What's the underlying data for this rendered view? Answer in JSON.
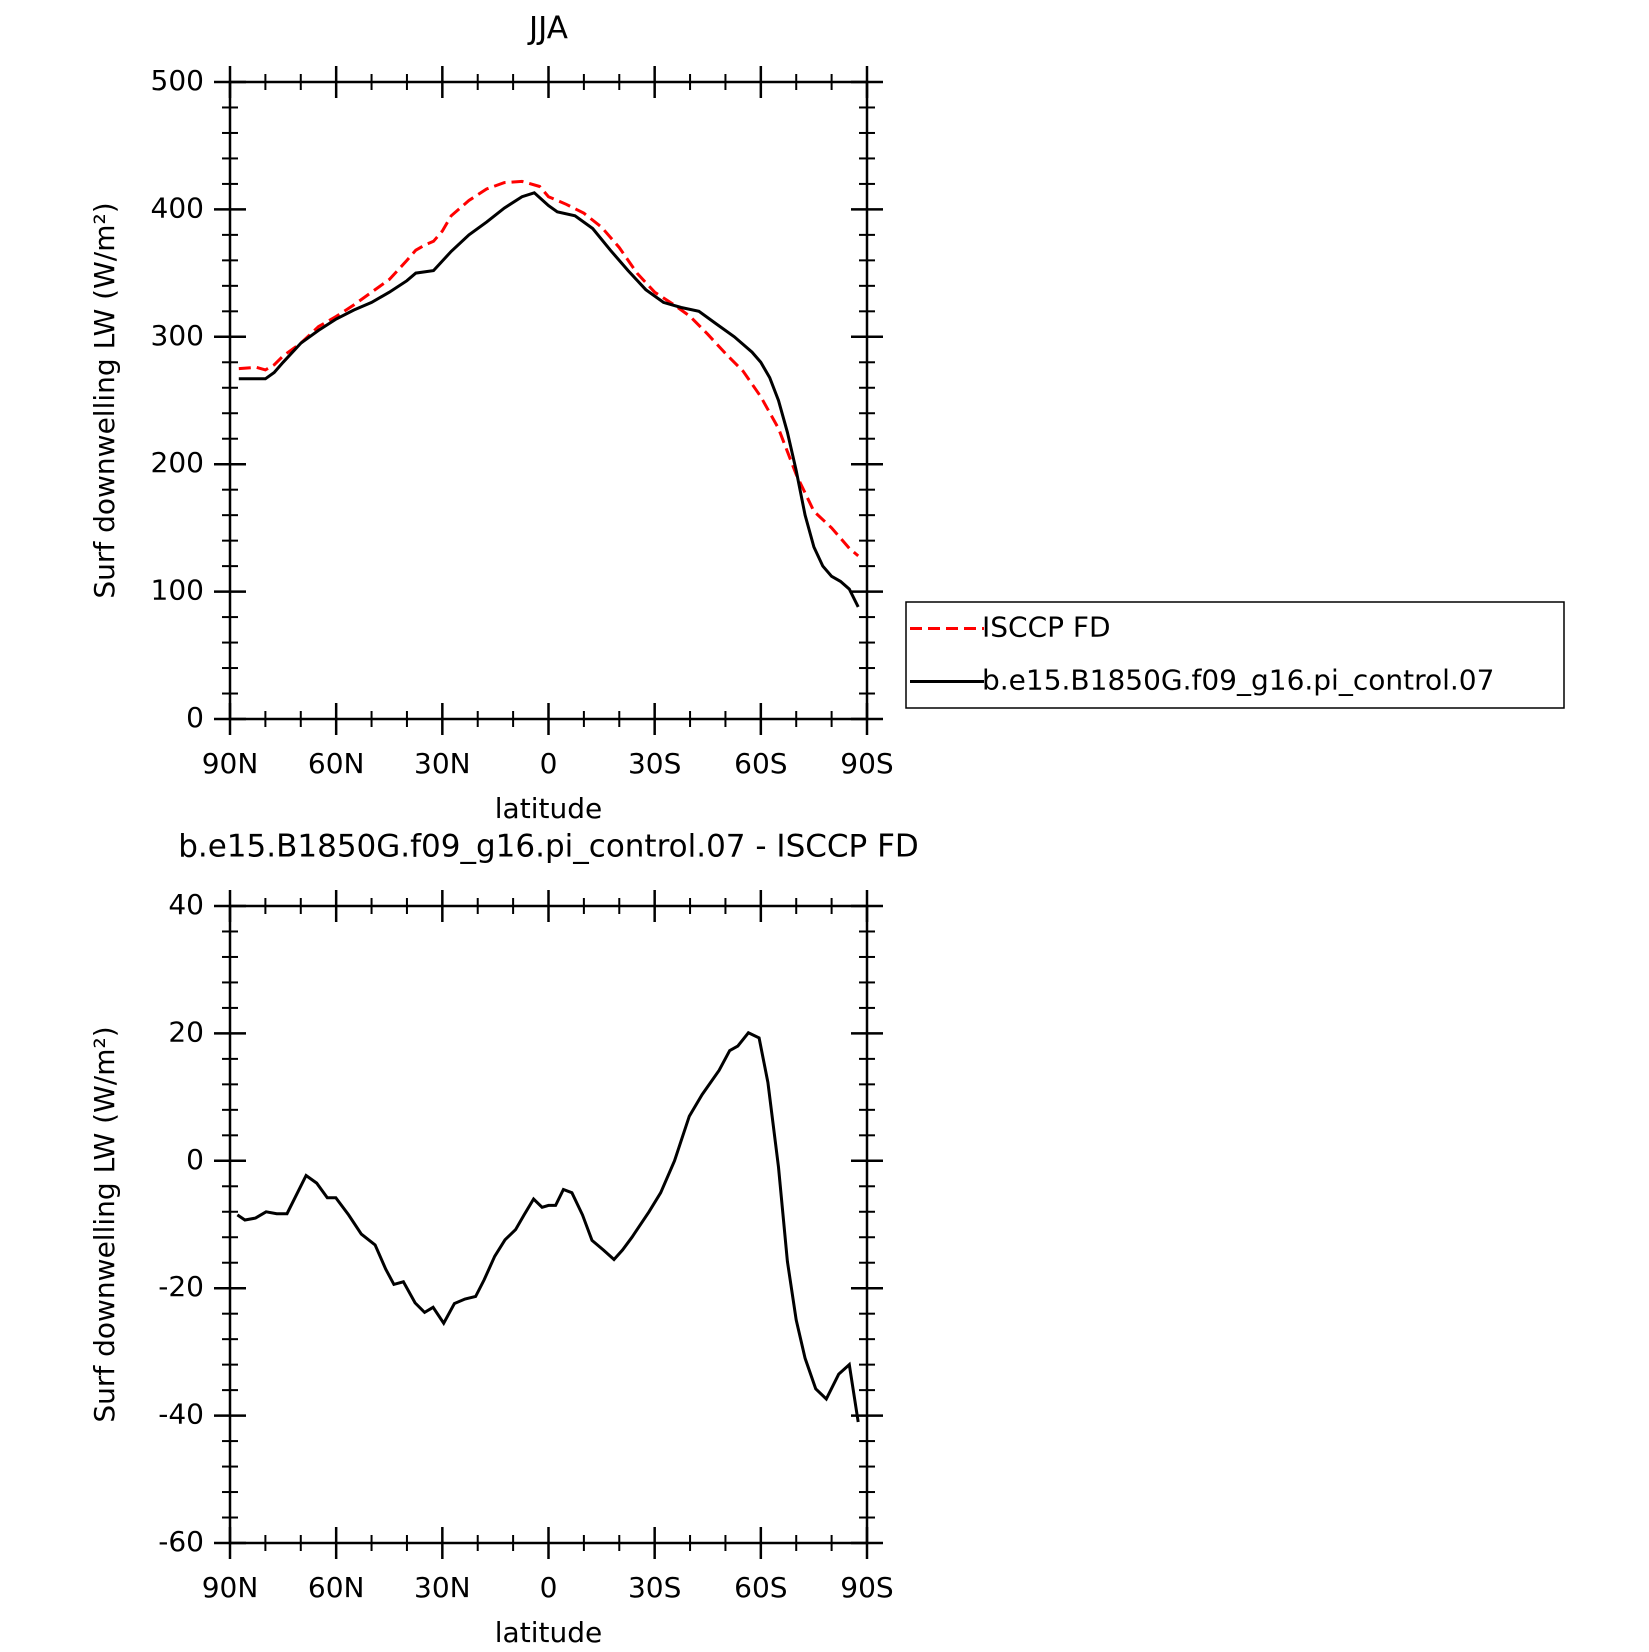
{
  "chart_data": [
    {
      "type": "line",
      "title": "JJA",
      "xlabel": "latitude",
      "ylabel": "Surf downwelling LW (W/m²)",
      "xlim": [
        90,
        -90
      ],
      "ylim": [
        0,
        500
      ],
      "xticks": [
        {
          "value": 90,
          "label": "90N"
        },
        {
          "value": 60,
          "label": "60N"
        },
        {
          "value": 30,
          "label": "30N"
        },
        0,
        {
          "value": -30,
          "label": "30S"
        },
        {
          "value": -60,
          "label": "60S"
        },
        {
          "value": -90,
          "label": "90S"
        }
      ],
      "yticks": [
        0,
        100,
        200,
        300,
        400,
        500
      ],
      "legend": "right",
      "series": [
        {
          "name": "ISCCP FD",
          "color": "#ff0000",
          "dash": true,
          "x": [
            87.5,
            82.5,
            80,
            77.5,
            75,
            70,
            65,
            60,
            55,
            50,
            45,
            40,
            37.5,
            35,
            32.5,
            30,
            27.5,
            22.5,
            17.5,
            12.5,
            7.5,
            2.5,
            0,
            -5,
            -10,
            -15,
            -20,
            -25,
            -30,
            -35,
            -40,
            -45,
            -50,
            -55,
            -60,
            -65,
            -70,
            -75,
            -80,
            -85,
            -87.5
          ],
          "values": [
            275,
            276,
            274,
            278,
            285,
            295,
            308,
            316,
            325,
            335,
            345,
            360,
            368,
            372,
            375,
            383,
            395,
            407,
            416,
            421,
            422,
            418,
            410,
            404,
            397,
            386,
            370,
            350,
            335,
            326,
            316,
            302,
            287,
            273,
            253,
            228,
            192,
            163,
            150,
            134,
            128
          ]
        },
        {
          "name": "b.e15.B1850G.f09_g16.pi_control.07",
          "color": "#000000",
          "dash": false,
          "x": [
            87.5,
            85,
            80,
            77.5,
            75,
            70,
            65,
            60,
            55,
            50,
            45,
            40,
            37.5,
            32.5,
            27.5,
            22.5,
            17.5,
            12.5,
            7.5,
            4,
            0,
            -2.5,
            -7.5,
            -12.5,
            -17.5,
            -22.5,
            -27.5,
            -32.5,
            -37.5,
            -42.5,
            -47.5,
            -52.5,
            -57.5,
            -60,
            -62.5,
            -65,
            -67.5,
            -70,
            -72.5,
            -75,
            -77.5,
            -80,
            -82.5,
            -85,
            -87.5
          ],
          "values": [
            267,
            267,
            267,
            272,
            280,
            295,
            305,
            314,
            321,
            327,
            335,
            344,
            350,
            352,
            367,
            380,
            390,
            401,
            410,
            413,
            403,
            398,
            395,
            385,
            368,
            352,
            337,
            327,
            323,
            320,
            310,
            300,
            288,
            280,
            268,
            250,
            225,
            195,
            160,
            135,
            120,
            112,
            108,
            102,
            88
          ]
        }
      ]
    },
    {
      "type": "line",
      "title": "b.e15.B1850G.f09_g16.pi_control.07 - ISCCP FD",
      "xlabel": "latitude",
      "ylabel": "Surf downwelling LW (W/m²)",
      "xlim": [
        90,
        -90
      ],
      "ylim": [
        -60,
        40
      ],
      "xticks": [
        {
          "value": 90,
          "label": "90N"
        },
        {
          "value": 60,
          "label": "60N"
        },
        {
          "value": 30,
          "label": "30N"
        },
        0,
        {
          "value": -30,
          "label": "30S"
        },
        {
          "value": -60,
          "label": "60S"
        },
        {
          "value": -90,
          "label": "90S"
        }
      ],
      "yticks": [
        -60,
        -40,
        -20,
        0,
        20,
        40
      ],
      "series": [
        {
          "color": "#000000",
          "dash": false,
          "x": [
            87.9,
            85.8,
            82.8,
            79.8,
            76.8,
            73.9,
            68.5,
            65.5,
            62.5,
            60.1,
            56.5,
            52.9,
            49,
            46,
            43.7,
            41,
            37.7,
            35,
            32.6,
            29.6,
            26.6,
            23.6,
            20.6,
            18.2,
            15.2,
            12.3,
            9.3,
            6.9,
            4.2,
            1.8,
            0,
            -2,
            -4.2,
            -6.6,
            -9.6,
            -12.3,
            -15.5,
            -18.5,
            -20.9,
            -23.6,
            -28.4,
            -31.7,
            -35.6,
            -39.8,
            -43.4,
            -48.2,
            -51.2,
            -53.5,
            -56.5,
            -59.5,
            -62,
            -65,
            -67.5,
            -70,
            -72.5,
            -75.5,
            -78.5,
            -82,
            -85,
            -87.5
          ],
          "values": [
            -8.5,
            -9.3,
            -9,
            -8,
            -8.3,
            -8.3,
            -2.3,
            -3.5,
            -5.8,
            -5.8,
            -8.5,
            -11.5,
            -13.2,
            -17,
            -19.4,
            -19,
            -22.3,
            -23.8,
            -23,
            -25.5,
            -22.4,
            -21.7,
            -21.3,
            -18.7,
            -15,
            -12.4,
            -10.8,
            -8.5,
            -6,
            -7.3,
            -7,
            -7,
            -4.5,
            -5,
            -8.5,
            -12.5,
            -14,
            -15.5,
            -14,
            -12,
            -8,
            -5,
            0,
            7,
            10.4,
            14.2,
            17.3,
            18,
            20.1,
            19.3,
            12.3,
            -1,
            -15.8,
            -25,
            -31,
            -35.8,
            -37.4,
            -33.5,
            -32,
            -41
          ]
        }
      ]
    }
  ]
}
